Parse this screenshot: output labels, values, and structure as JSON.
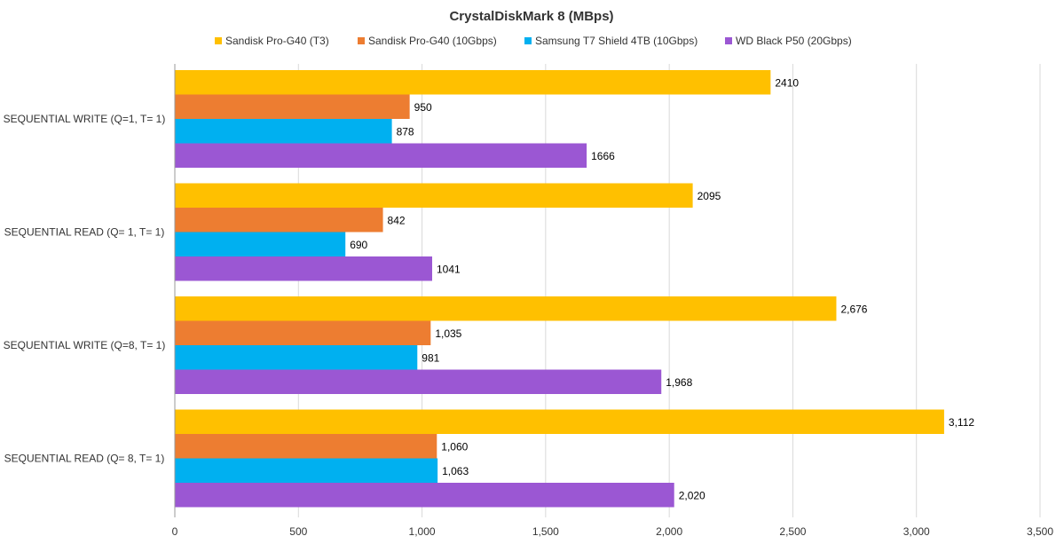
{
  "chart_data": {
    "type": "bar",
    "orientation": "horizontal",
    "title": "CrystalDiskMark 8 (MBps)",
    "xlabel": "",
    "ylabel": "",
    "xlim": [
      0,
      3500
    ],
    "x_ticks": [
      0,
      500,
      1000,
      1500,
      2000,
      2500,
      3000,
      3500
    ],
    "x_tick_labels": [
      "0",
      "500",
      "1,000",
      "1,500",
      "2,000",
      "2,500",
      "3,000",
      "3,500"
    ],
    "grid": "vertical",
    "legend_position": "top",
    "categories": [
      "SEQUENTIAL WRITE (Q=1, T= 1)",
      "SEQUENTIAL READ (Q= 1, T= 1)",
      "SEQUENTIAL WRITE (Q=8, T= 1)",
      "SEQUENTIAL READ (Q= 8, T= 1)"
    ],
    "series": [
      {
        "name": "Sandisk Pro-G40 (T3)",
        "color": "#FFC000",
        "values": [
          2410,
          2095,
          2676,
          3112
        ],
        "labels": [
          "2410",
          "2095",
          "2,676",
          "3,112"
        ]
      },
      {
        "name": "Sandisk Pro-G40 (10Gbps)",
        "color": "#ED7D31",
        "values": [
          950,
          842,
          1035,
          1060
        ],
        "labels": [
          "950",
          "842",
          "1,035",
          "1,060"
        ]
      },
      {
        "name": "Samsung T7 Shield 4TB (10Gbps)",
        "color": "#00B0F0",
        "values": [
          878,
          690,
          981,
          1063
        ],
        "labels": [
          "878",
          "690",
          "981",
          "1,063"
        ]
      },
      {
        "name": "WD Black P50 (20Gbps)",
        "color": "#9B57D3",
        "values": [
          1666,
          1041,
          1968,
          2020
        ],
        "labels": [
          "1666",
          "1041",
          "1,968",
          "2,020"
        ]
      }
    ]
  }
}
